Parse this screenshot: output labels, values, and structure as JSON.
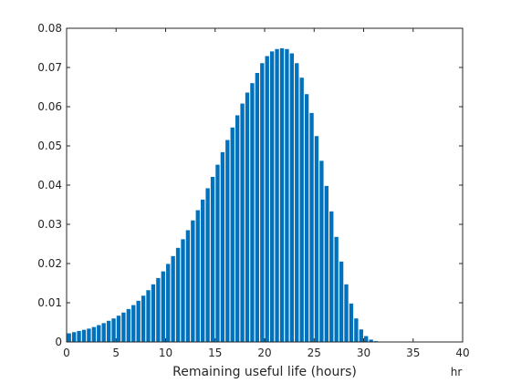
{
  "chart_data": {
    "type": "bar",
    "title": "",
    "xlabel": "Remaining useful life (hours)",
    "ylabel": "",
    "x_unit_label": "hr",
    "xlim": [
      0,
      40
    ],
    "ylim": [
      0,
      0.08
    ],
    "x_ticks": [
      0,
      5,
      10,
      15,
      20,
      25,
      30,
      35,
      40
    ],
    "y_ticks": [
      0,
      0.01,
      0.02,
      0.03,
      0.04,
      0.05,
      0.06,
      0.07,
      0.08
    ],
    "x_tick_labels": [
      "0",
      "5",
      "10",
      "15",
      "20",
      "25",
      "30",
      "35",
      "40"
    ],
    "y_tick_labels": [
      "0",
      "0.01",
      "0.02",
      "0.03",
      "0.04",
      "0.05",
      "0.06",
      "0.07",
      "0.08"
    ],
    "grid": false,
    "legend": "none",
    "bar_color": "#0072BD",
    "bar_width": 0.4,
    "x": [
      0.25,
      0.75,
      1.25,
      1.75,
      2.25,
      2.75,
      3.25,
      3.75,
      4.25,
      4.75,
      5.25,
      5.75,
      6.25,
      6.75,
      7.25,
      7.75,
      8.25,
      8.75,
      9.25,
      9.75,
      10.25,
      10.75,
      11.25,
      11.75,
      12.25,
      12.75,
      13.25,
      13.75,
      14.25,
      14.75,
      15.25,
      15.75,
      16.25,
      16.75,
      17.25,
      17.75,
      18.25,
      18.75,
      19.25,
      19.75,
      20.25,
      20.75,
      21.25,
      21.75,
      22.25,
      22.75,
      23.25,
      23.75,
      24.25,
      24.75,
      25.25,
      25.75,
      26.25,
      26.75,
      27.25,
      27.75,
      28.25,
      28.75,
      29.25,
      29.75,
      30.25,
      30.75,
      31.25,
      31.75
    ],
    "values": [
      0.0022,
      0.0025,
      0.0028,
      0.0031,
      0.0034,
      0.0038,
      0.0043,
      0.0048,
      0.0054,
      0.006,
      0.0067,
      0.0075,
      0.0084,
      0.0094,
      0.0105,
      0.0118,
      0.0132,
      0.0147,
      0.0163,
      0.018,
      0.0199,
      0.0219,
      0.024,
      0.0262,
      0.0285,
      0.031,
      0.0336,
      0.0363,
      0.0392,
      0.0421,
      0.0452,
      0.0484,
      0.0515,
      0.0547,
      0.0578,
      0.0608,
      0.0636,
      0.066,
      0.0686,
      0.0711,
      0.0729,
      0.0741,
      0.0747,
      0.0749,
      0.0747,
      0.0736,
      0.0711,
      0.0674,
      0.0632,
      0.0584,
      0.0525,
      0.0462,
      0.0398,
      0.0333,
      0.0268,
      0.0205,
      0.0147,
      0.0098,
      0.006,
      0.0032,
      0.0015,
      0.0006,
      0.0002,
      0.0001
    ]
  }
}
